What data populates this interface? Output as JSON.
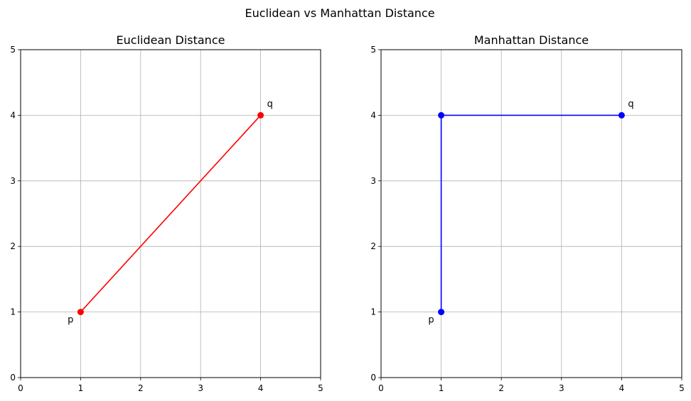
{
  "figure": {
    "suptitle": "Euclidean vs Manhattan Distance"
  },
  "chart_data": [
    {
      "type": "line",
      "title": "Euclidean Distance",
      "xlabel": "",
      "ylabel": "",
      "xlim": [
        0,
        5
      ],
      "ylim": [
        0,
        5
      ],
      "xticks": [
        0,
        1,
        2,
        3,
        4,
        5
      ],
      "yticks": [
        0,
        1,
        2,
        3,
        4,
        5
      ],
      "grid": true,
      "color": "#ff0000",
      "series": [
        {
          "x": [
            1,
            4
          ],
          "y": [
            1,
            4
          ],
          "marker": "circle"
        }
      ],
      "annotations": [
        {
          "text": "p",
          "x": 1,
          "y": 1,
          "placement": "below-left"
        },
        {
          "text": "q",
          "x": 4,
          "y": 4,
          "placement": "above-right"
        }
      ]
    },
    {
      "type": "line",
      "title": "Manhattan Distance",
      "xlabel": "",
      "ylabel": "",
      "xlim": [
        0,
        5
      ],
      "ylim": [
        0,
        5
      ],
      "xticks": [
        0,
        1,
        2,
        3,
        4,
        5
      ],
      "yticks": [
        0,
        1,
        2,
        3,
        4,
        5
      ],
      "grid": true,
      "color": "#0000ff",
      "series": [
        {
          "x": [
            1,
            1,
            4
          ],
          "y": [
            1,
            4,
            4
          ],
          "marker": "circle"
        }
      ],
      "annotations": [
        {
          "text": "p",
          "x": 1,
          "y": 1,
          "placement": "below-left"
        },
        {
          "text": "q",
          "x": 4,
          "y": 4,
          "placement": "above-right"
        }
      ]
    }
  ]
}
